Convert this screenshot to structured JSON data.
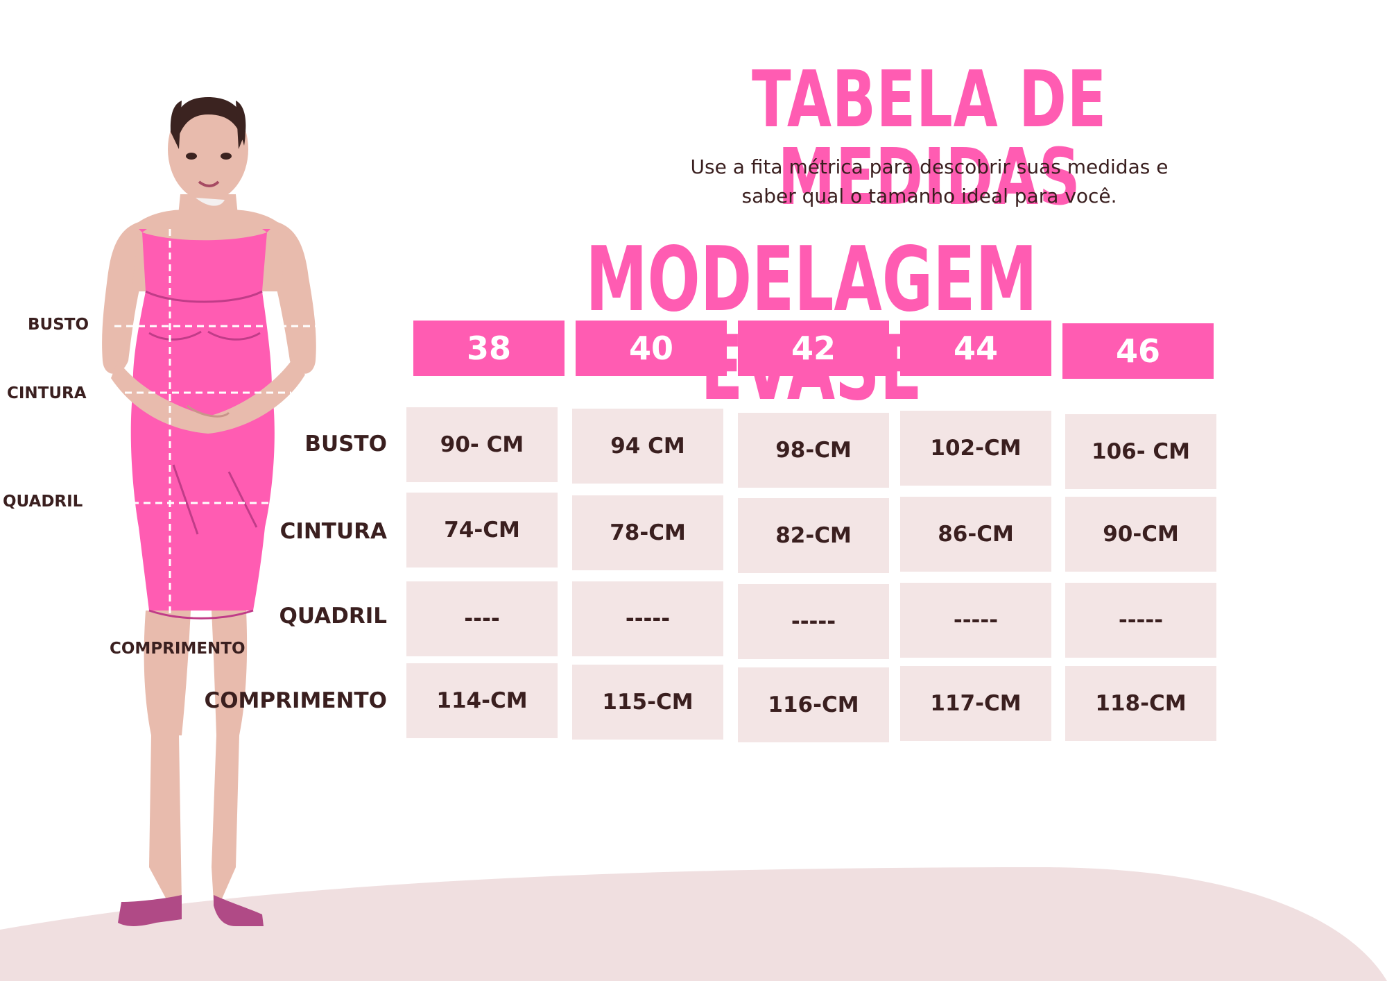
{
  "title": "TABELA DE MEDIDAS",
  "subtitle": {
    "line1": "Use a fita métrica para descobrir suas medidas e",
    "line2": "saber qual o tamanho ideal para você."
  },
  "model_title": "MODELAGEM EVASE",
  "sizes": [
    "38",
    "40",
    "42",
    "44",
    "46"
  ],
  "rows": [
    {
      "label": "BUSTO",
      "values": [
        "90- CM",
        "94 CM",
        "98-CM",
        "102-CM",
        "106- CM"
      ]
    },
    {
      "label": "CINTURA",
      "values": [
        "74-CM",
        "78-CM",
        "82-CM",
        "86-CM",
        "90-CM"
      ]
    },
    {
      "label": "QUADRIL",
      "values": [
        "----",
        "-----",
        "-----",
        "-----",
        "-----"
      ]
    },
    {
      "label": "COMPRIMENTO",
      "values": [
        "114-CM",
        "115-CM",
        "116-CM",
        "117-CM",
        "118-CM"
      ]
    }
  ],
  "body_labels": {
    "busto": "BUSTO",
    "cintura": "CINTURA",
    "quadril": "QUADRIL",
    "comprimento": "COMPRIMENTO"
  },
  "colors": {
    "accent": "#ff5cb2",
    "cell_bg": "#f3e5e5",
    "text": "#3a1f1f",
    "ground": "#f0dfe0",
    "skin": "#e8bbad",
    "hair": "#3b2320",
    "shoe": "#b04a86"
  }
}
